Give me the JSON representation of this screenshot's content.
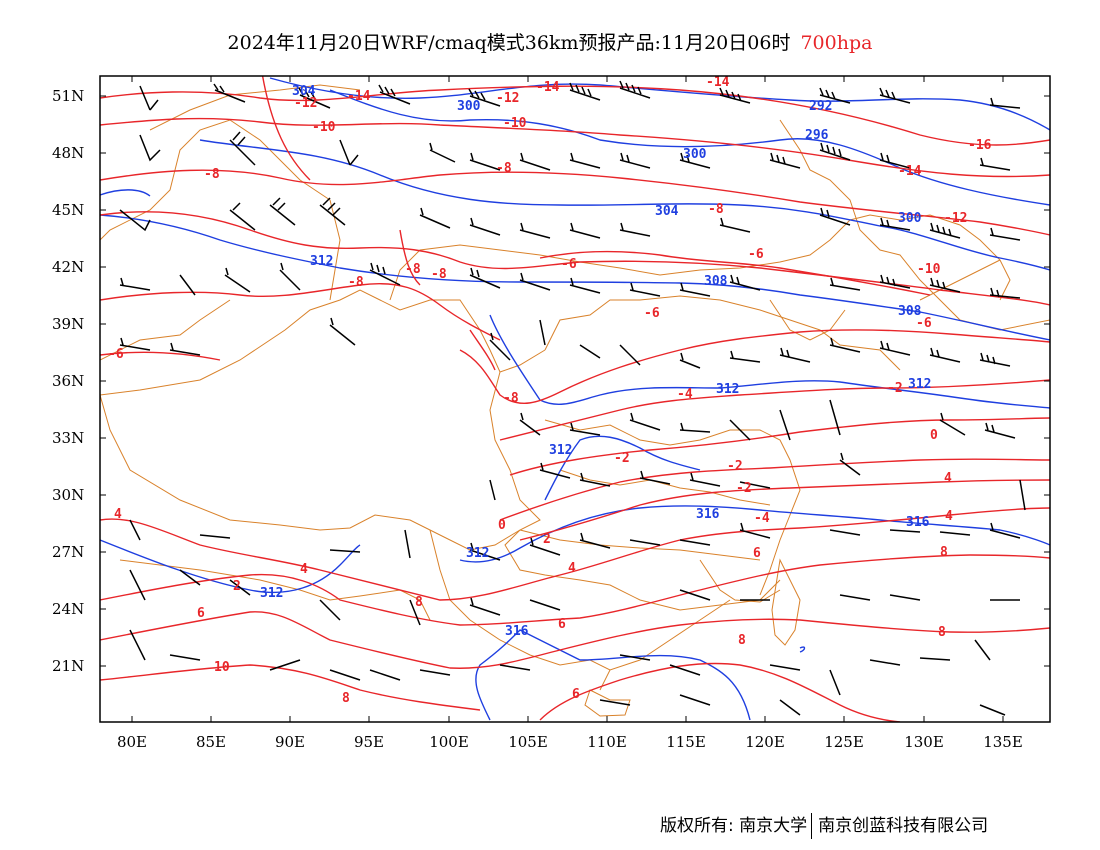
{
  "title": {
    "main": "2024年11月20日WRF/cmaq模式36km预报产品:11月20日06时",
    "level": "700hpa"
  },
  "axes": {
    "lat_labels": [
      "51N",
      "48N",
      "45N",
      "42N",
      "39N",
      "36N",
      "33N",
      "30N",
      "27N",
      "24N",
      "21N"
    ],
    "lon_labels": [
      "80E",
      "85E",
      "90E",
      "95E",
      "100E",
      "105E",
      "110E",
      "115E",
      "120E",
      "125E",
      "130E",
      "135E"
    ]
  },
  "colors": {
    "temperature": "#e8262a",
    "geopotential": "#1f3fe0",
    "boundary": "#d9822b",
    "barb": "#000000"
  },
  "footer": {
    "copyright": "版权所有: 南京大学",
    "company": "南京创蓝科技有限公司"
  },
  "contour_labels": {
    "height": [
      "304",
      "300",
      "292",
      "296",
      "300",
      "304",
      "300",
      "312",
      "308",
      "308",
      "312",
      "312",
      "312",
      "316",
      "316",
      "312",
      "316"
    ],
    "temperature": [
      "-12",
      "-14",
      "-12",
      "-14",
      "-14",
      "-10",
      "-10",
      "-16",
      "-8",
      "-8",
      "-14",
      "-8",
      "-12",
      "-8",
      "-8",
      "-6",
      "-6",
      "-10",
      "-8",
      "-6",
      "-6",
      "-6",
      "-8",
      "-4",
      "-2",
      "-2",
      "0",
      "-2",
      "0",
      "-2",
      "2",
      "4",
      "-4",
      "2",
      "4",
      "4",
      "6",
      "6",
      "6",
      "8",
      "8",
      "8",
      "8",
      "10",
      "8",
      "6"
    ]
  }
}
